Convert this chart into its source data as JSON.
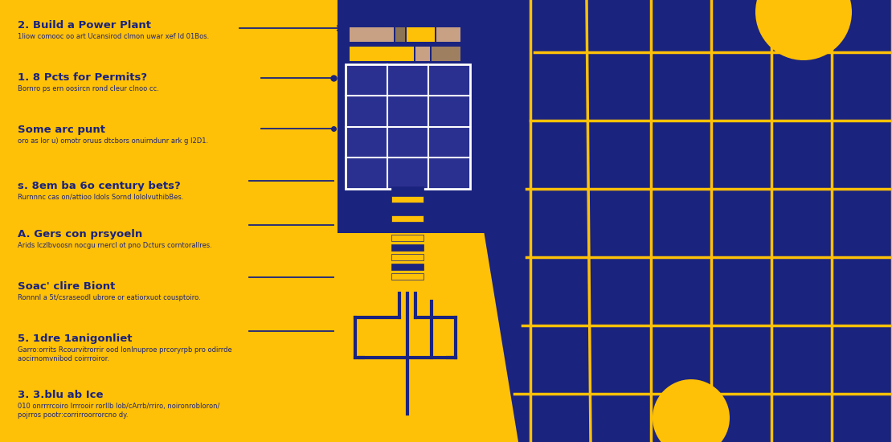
{
  "bg_yellow": "#FFC107",
  "bg_blue": "#1a237e",
  "text_color": "#1a237e",
  "yellow_line": "#FFC107",
  "white_color": "#FFFFFF",
  "headings": [
    "2. Build a Power Plant",
    "1. 8 Pcts for Permits?",
    "Some arc punt",
    "s. 8em ba 6o century bets?",
    "A. Gers con prsyoeln",
    "Soac' clire Biont",
    "5. 1dre 1anigonliet",
    "3. 3.blu ab Ice"
  ],
  "subtext": [
    "1liow comooc oo art Ucansirod clmon uwar xef Id 01Bos.",
    "Bornro ps ern oosircn rond cleur cInoo cc.",
    "oro as lor u) omotr oruus dtcbors onuirndunr ark g I2D1.",
    "Rurnnnc cas on/attioo Idols Sornd IololvuthibBes.",
    "Arids lczlbvoosn nocgu rnercl ot pno Dcturs corntorallres.",
    "Ronnnl a 5t/csraseodl ubrore or eatiorxuot cousptoiro.",
    "Garro:orrits Rcourvitrorrir ood IonInuproe prcoryrpb pro odirrde\naocirnomvnibod coirrroiror.",
    "010 onrrrrcoiro Irrrooir rorIIb Iob/cArrb/rriro, noironrobIoron/\npojrros pootr:corrirroorrorcno dy."
  ],
  "figsize": [
    11.1,
    5.5
  ],
  "dpi": 100
}
